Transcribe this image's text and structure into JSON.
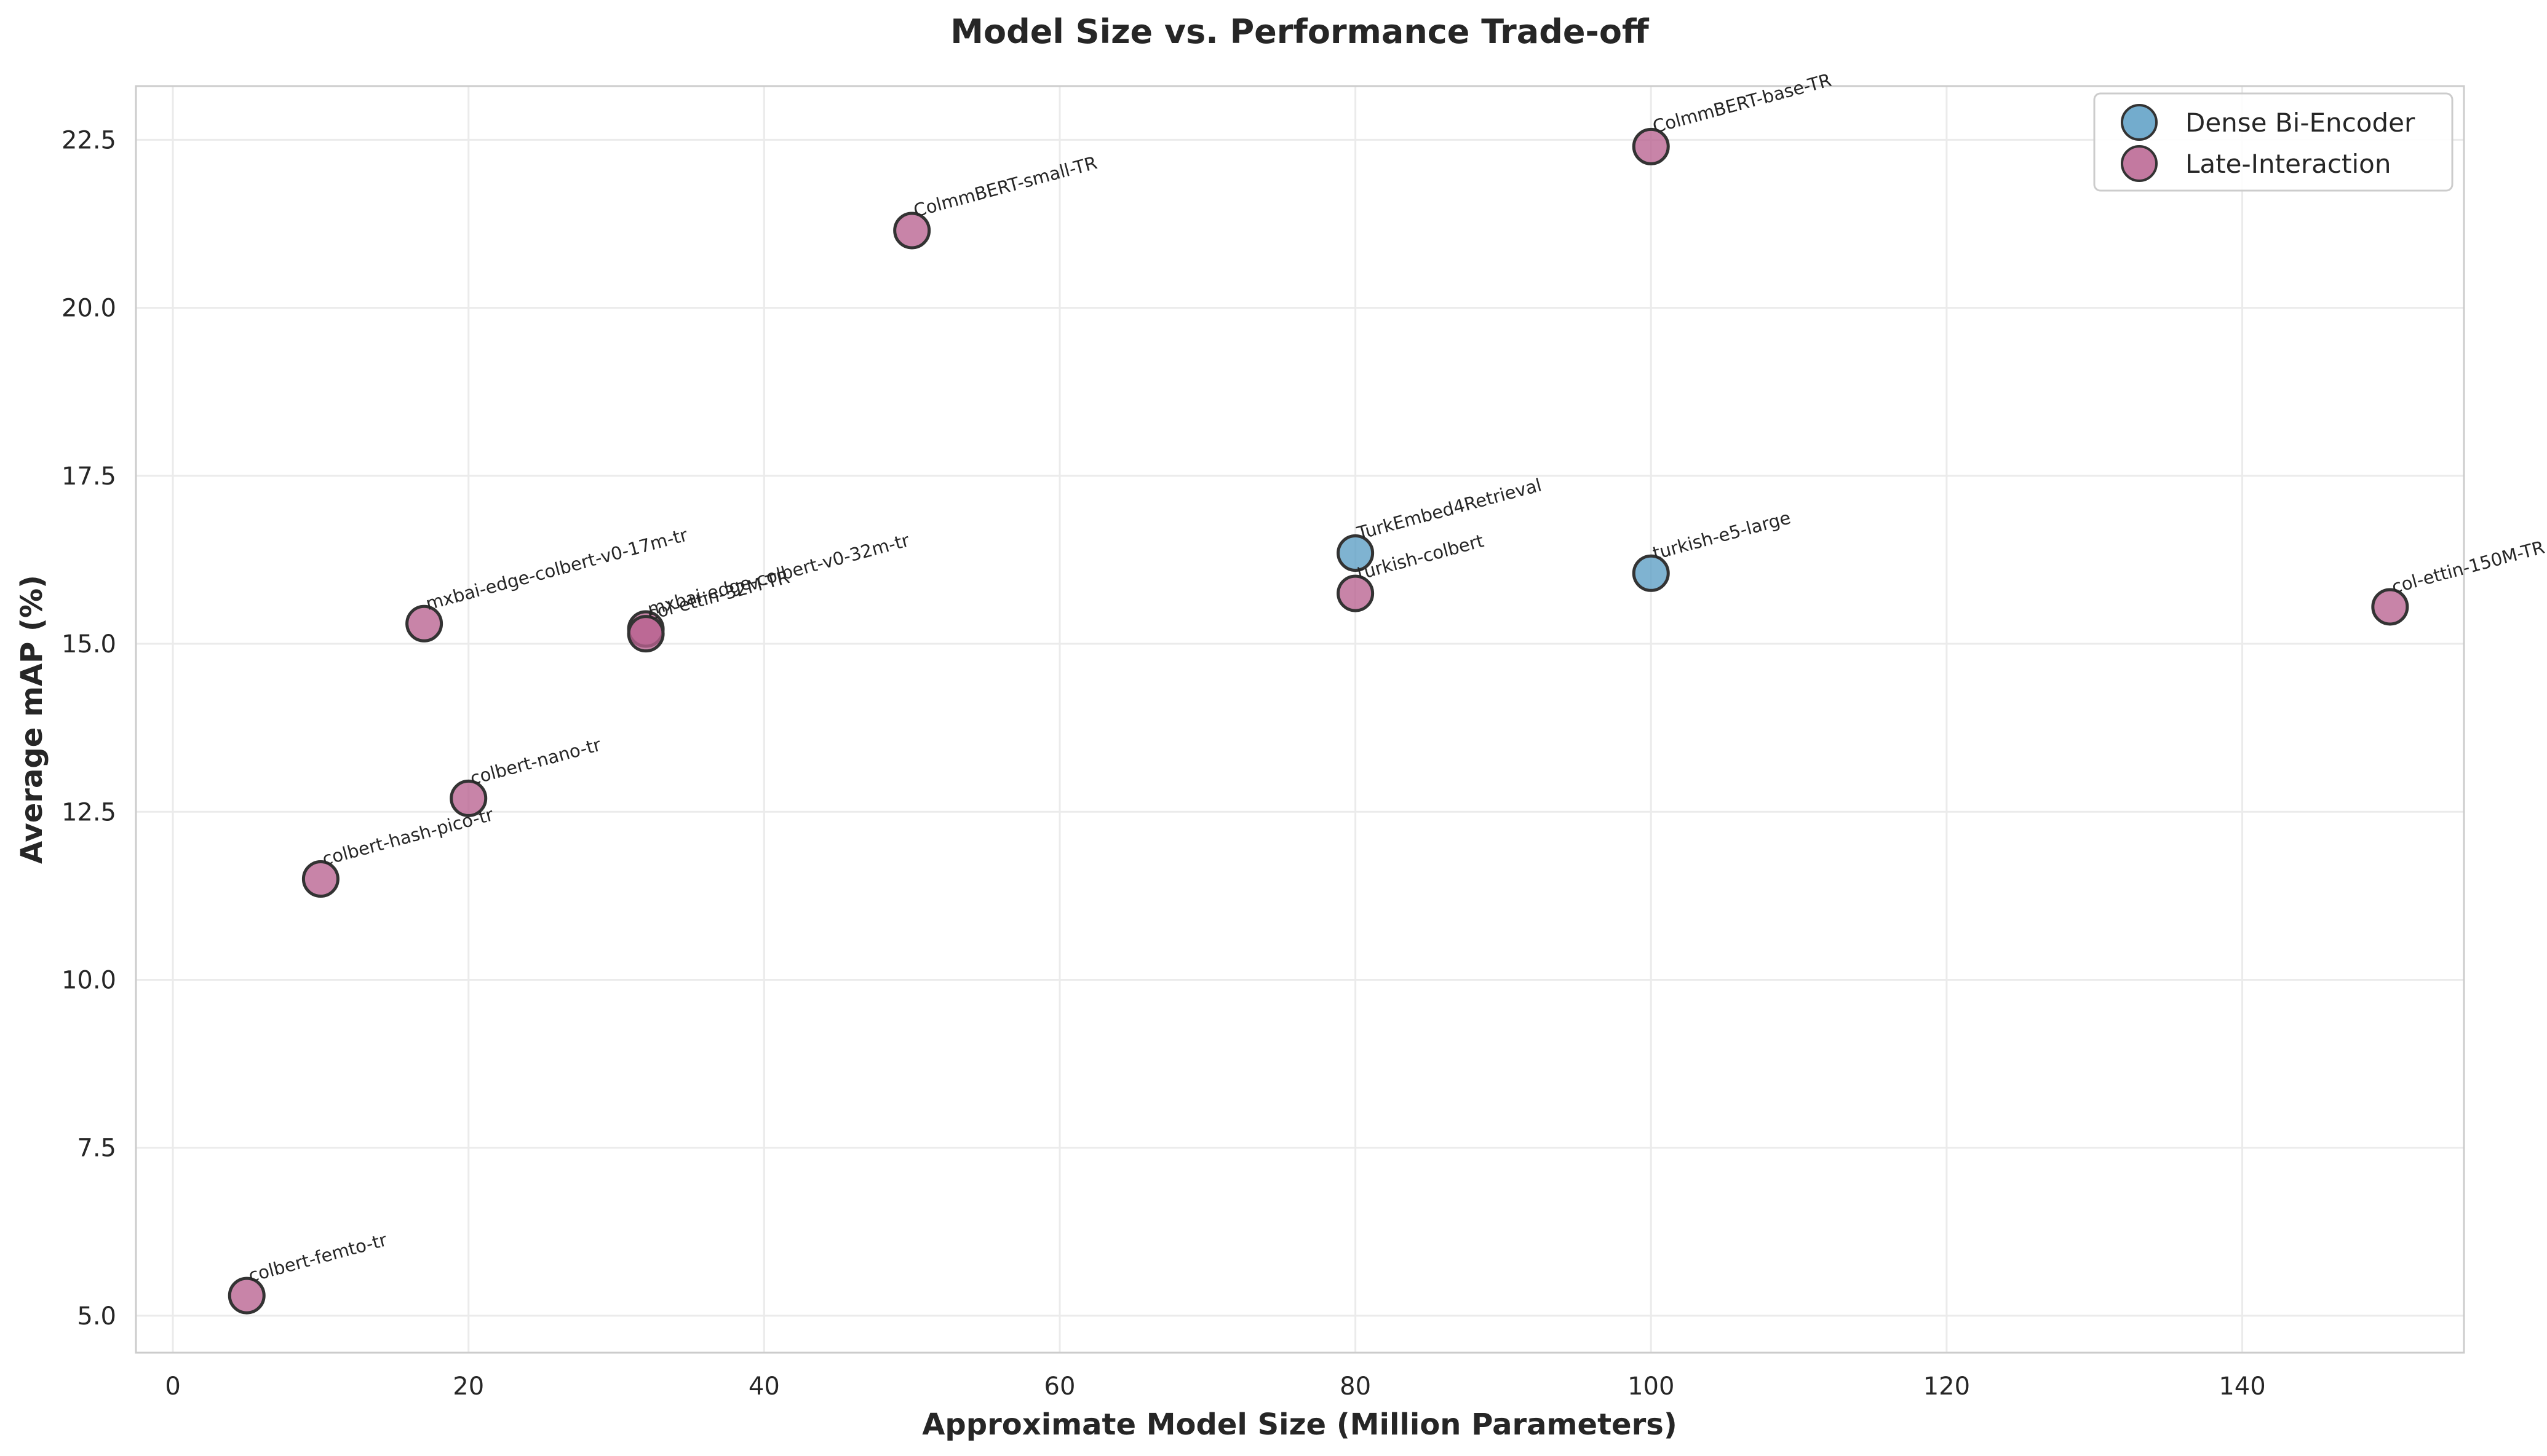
{
  "chart_data": {
    "type": "scatter",
    "title": "Model Size vs. Performance Trade-off",
    "xlabel": "Approximate Model Size (Million Parameters)",
    "ylabel": "Average mAP (%)",
    "xlim": [
      -2.5,
      155
    ],
    "ylim": [
      4.45,
      23.3
    ],
    "xticks": [
      0,
      20,
      40,
      60,
      80,
      100,
      120,
      140
    ],
    "yticks": [
      5.0,
      7.5,
      10.0,
      12.5,
      15.0,
      17.5,
      20.0,
      22.5
    ],
    "grid": true,
    "legend_position": "top-right",
    "series": [
      {
        "name": "Dense Bi-Encoder",
        "color": "#5b9ec4",
        "points": [
          {
            "label": "TurkEmbed4Retrieval",
            "x": 80,
            "y": 16.35
          },
          {
            "label": "turkish-e5-large",
            "x": 100,
            "y": 16.05
          }
        ]
      },
      {
        "name": "Late-Interaction",
        "color": "#b8628f",
        "points": [
          {
            "label": "colbert-femto-tr",
            "x": 5,
            "y": 5.3
          },
          {
            "label": "colbert-hash-pico-tr",
            "x": 10,
            "y": 11.5
          },
          {
            "label": "mxbai-edge-colbert-v0-17m-tr",
            "x": 17,
            "y": 15.3
          },
          {
            "label": "colbert-nano-tr",
            "x": 20,
            "y": 12.7
          },
          {
            "label": "mxbai-edge-colbert-v0-32m-tr",
            "x": 32,
            "y": 15.22
          },
          {
            "label": "col-ettin-32M-TR",
            "x": 32,
            "y": 15.15
          },
          {
            "label": "ColmmBERT-small-TR",
            "x": 50,
            "y": 21.15
          },
          {
            "label": "turkish-colbert",
            "x": 80,
            "y": 15.75
          },
          {
            "label": "ColmmBERT-base-TR",
            "x": 100,
            "y": 22.4
          },
          {
            "label": "col-ettin-150M-TR",
            "x": 150,
            "y": 15.55
          }
        ]
      }
    ]
  }
}
